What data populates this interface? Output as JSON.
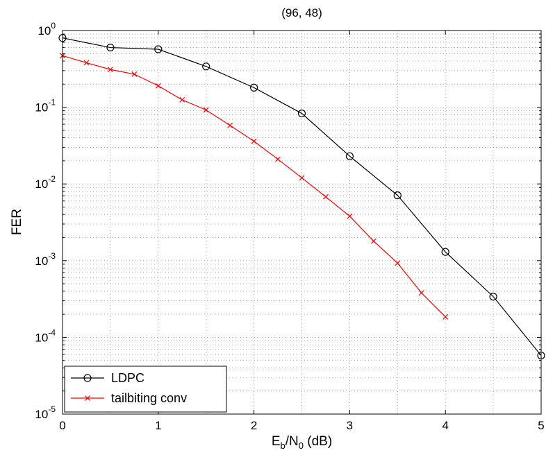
{
  "chart_data": {
    "type": "line",
    "title": "(96, 48)",
    "xlabel": {
      "base": "E",
      "sub1": "b",
      "mid": "/N",
      "sub2": "0",
      "tail": " (dB)"
    },
    "ylabel": "FER",
    "xlim": [
      0,
      5
    ],
    "ylim": [
      1e-05,
      1
    ],
    "yscale": "log",
    "grid": true,
    "legend_position": "bottom-left",
    "x_ticks": [
      "0",
      "1",
      "2",
      "3",
      "4",
      "5"
    ],
    "y_ticks": [
      {
        "base": "10",
        "exp": "0"
      },
      {
        "base": "10",
        "exp": "-1"
      },
      {
        "base": "10",
        "exp": "-2"
      },
      {
        "base": "10",
        "exp": "-3"
      },
      {
        "base": "10",
        "exp": "-4"
      },
      {
        "base": "10",
        "exp": "-5"
      }
    ],
    "series": [
      {
        "name": "LDPC",
        "color": "#000000",
        "marker": "circle",
        "x": [
          0,
          0.5,
          1,
          1.5,
          2,
          2.5,
          3,
          3.5,
          4,
          4.5,
          5
        ],
        "y": [
          0.8,
          0.6,
          0.57,
          0.34,
          0.18,
          0.083,
          0.023,
          0.0071,
          0.0013,
          0.00034,
          5.8e-05
        ]
      },
      {
        "name": "tailbiting conv",
        "color": "#ff0000",
        "marker": "x",
        "x": [
          0,
          0.25,
          0.5,
          0.75,
          1,
          1.25,
          1.5,
          1.75,
          2,
          2.25,
          2.5,
          2.75,
          3,
          3.25,
          3.5,
          3.75,
          4
        ],
        "y": [
          0.47,
          0.38,
          0.31,
          0.27,
          0.19,
          0.125,
          0.092,
          0.058,
          0.036,
          0.021,
          0.012,
          0.0068,
          0.0038,
          0.0018,
          0.00093,
          0.00038,
          0.000185
        ]
      }
    ]
  }
}
